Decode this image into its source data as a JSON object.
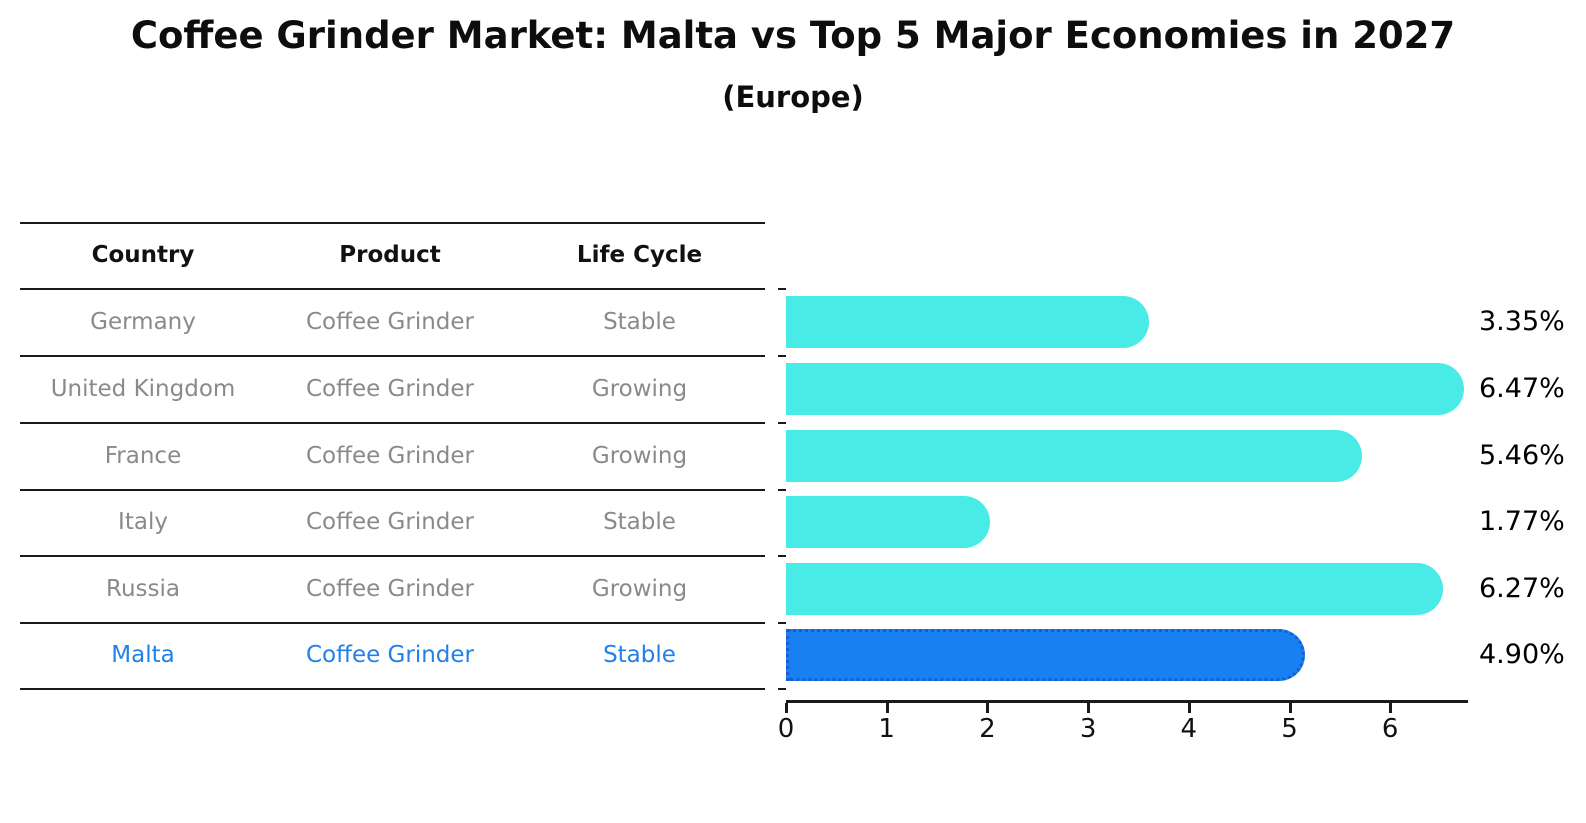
{
  "title": "Coffee Grinder Market: Malta vs Top 5 Major Economies in 2027",
  "subtitle": "(Europe)",
  "table": {
    "headers": [
      "Country",
      "Product",
      "Life Cycle"
    ],
    "rows": [
      {
        "country": "Germany",
        "product": "Coffee Grinder",
        "life_cycle": "Stable",
        "highlighted": false
      },
      {
        "country": "United Kingdom",
        "product": "Coffee Grinder",
        "life_cycle": "Growing",
        "highlighted": false
      },
      {
        "country": "France",
        "product": "Coffee Grinder",
        "life_cycle": "Growing",
        "highlighted": false
      },
      {
        "country": "Italy",
        "product": "Coffee Grinder",
        "life_cycle": "Stable",
        "highlighted": false
      },
      {
        "country": "Russia",
        "product": "Coffee Grinder",
        "life_cycle": "Growing",
        "highlighted": false
      },
      {
        "country": "Malta",
        "product": "Coffee Grinder",
        "life_cycle": "Stable",
        "highlighted": true
      }
    ]
  },
  "chart_data": {
    "type": "bar",
    "orientation": "horizontal",
    "title": "Coffee Grinder Market: Malta vs Top 5 Major Economies in 2027 (Europe)",
    "categories": [
      "Germany",
      "United Kingdom",
      "France",
      "Italy",
      "Russia",
      "Malta"
    ],
    "values": [
      3.35,
      6.47,
      5.46,
      1.77,
      6.27,
      4.9
    ],
    "value_labels": [
      "3.35%",
      "6.47%",
      "5.46%",
      "1.77%",
      "6.27%",
      "4.90%"
    ],
    "x_tick_labels": [
      "0",
      "1",
      "2",
      "3",
      "4",
      "5",
      "6"
    ],
    "xlim": [
      0,
      6.8
    ],
    "grid": false,
    "legend": false,
    "highlight_index": 5
  },
  "colors": {
    "bar": "#48EBE6",
    "highlight_bar": "#1880F0",
    "highlight_border": "#135FD6",
    "highlight_text": "#2380E8",
    "row_text": "#8a8a8a",
    "axis": "#1a1a1a"
  }
}
